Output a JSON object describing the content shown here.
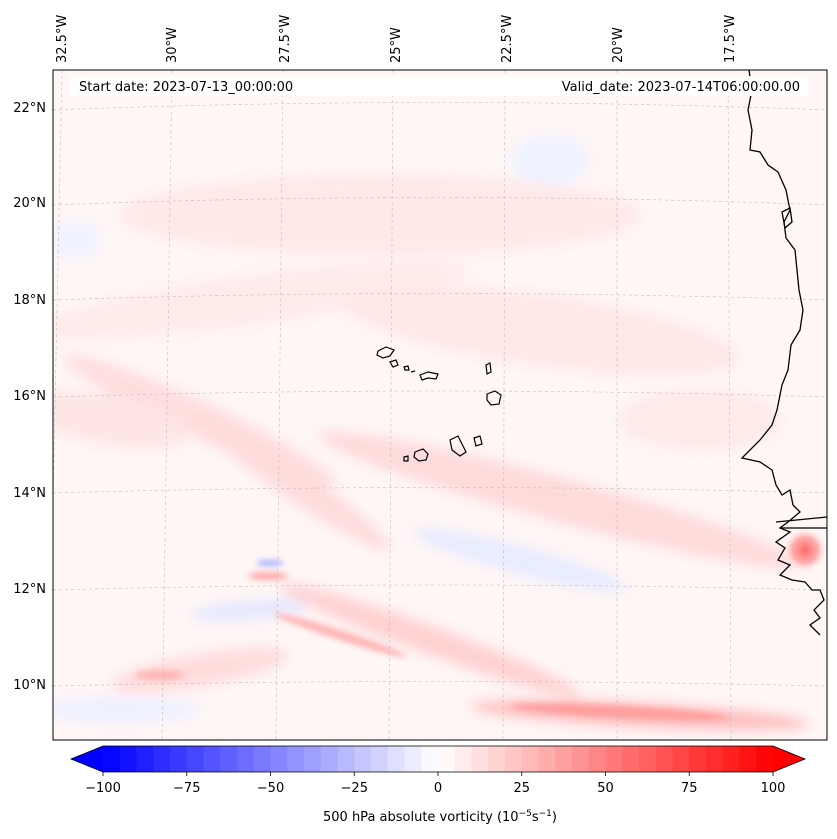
{
  "map": {
    "start_date_label": "Start date: 2023-07-13_00:00:00",
    "valid_date_label": "Valid_date: 2023-07-14T06:00:00.00",
    "longitude_labels": [
      "32.5°W",
      "30°W",
      "27.5°W",
      "25°W",
      "22.5°W",
      "20°W",
      "17.5°W"
    ],
    "latitude_labels": [
      "22°N",
      "20°N",
      "18°N",
      "16°N",
      "14°N",
      "12°N",
      "10°N"
    ],
    "land_feature": "West African coastline and Cape Verde islands"
  },
  "colorbar": {
    "title_prefix": "500 hPa absolute vorticity (10",
    "title_exp1": "−5",
    "title_mid": "s",
    "title_exp2": "−1",
    "title_suffix": ")",
    "min": -100,
    "max": 100,
    "tick_labels": [
      "−100",
      "−75",
      "−50",
      "−25",
      "0",
      "25",
      "50",
      "75",
      "100"
    ],
    "colors": {
      "negative": "#0000ff",
      "zero": "#ffffff",
      "positive": "#ff0000"
    }
  }
}
